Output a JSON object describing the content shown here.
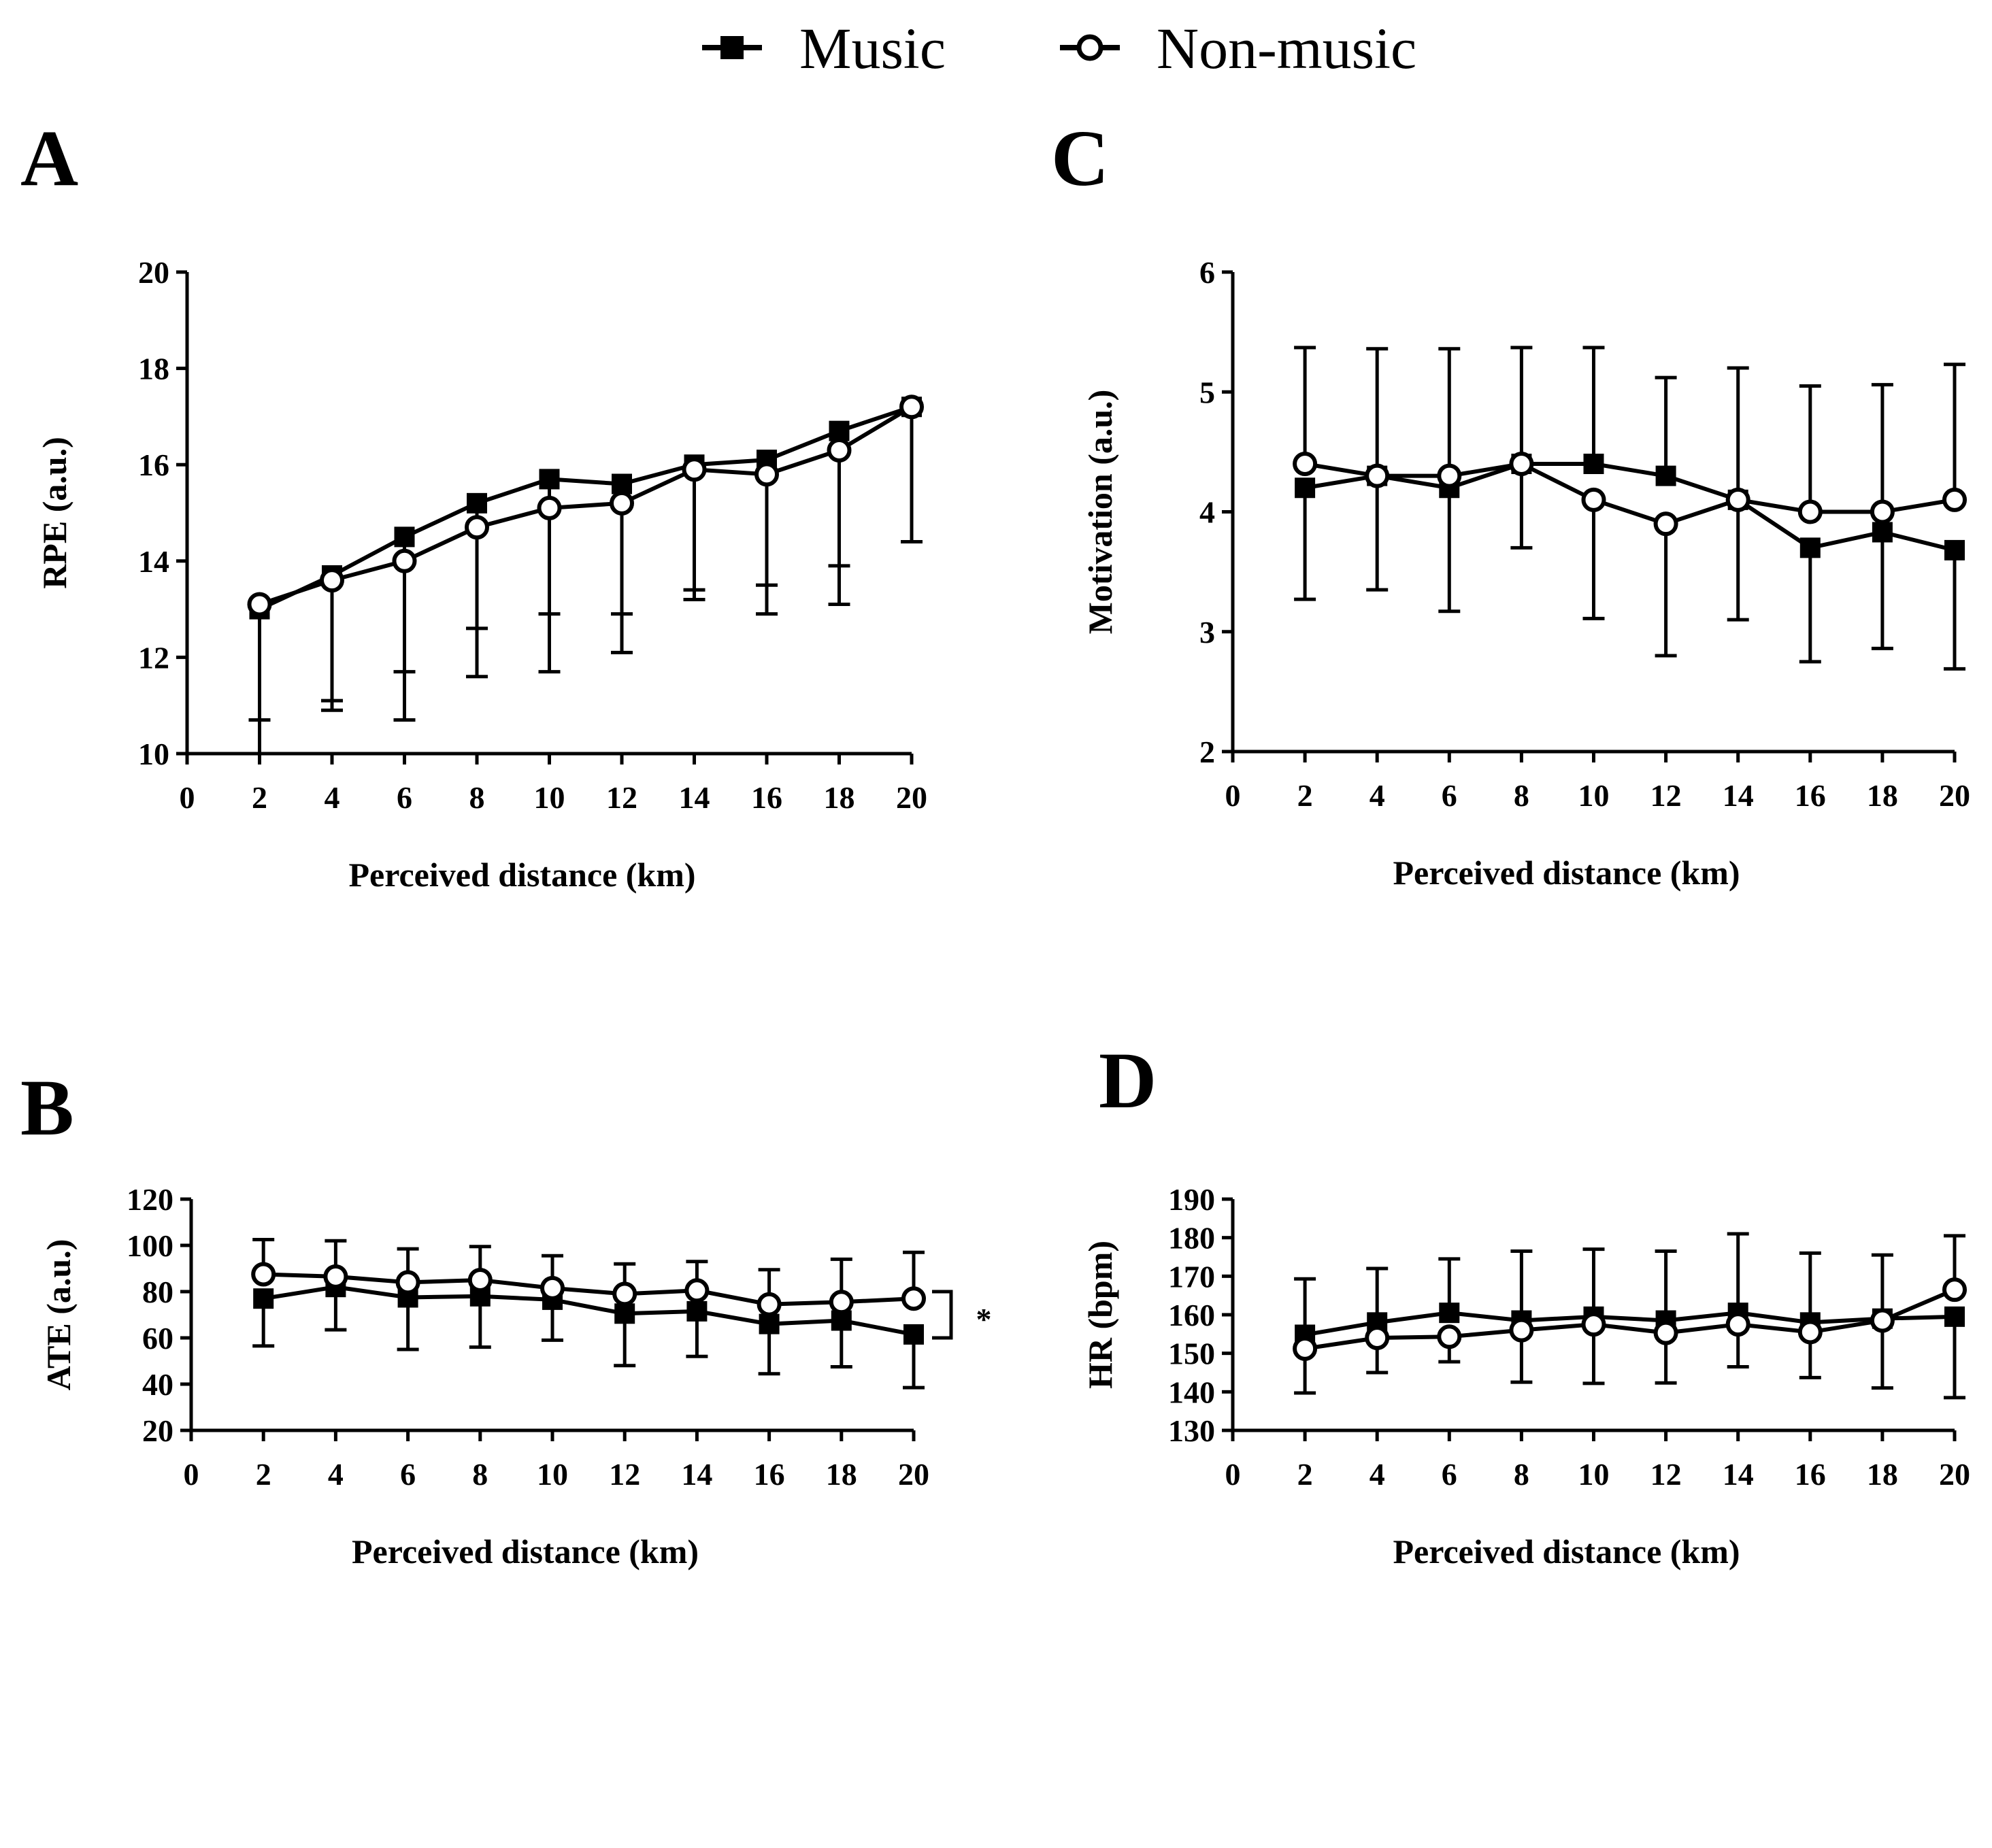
{
  "legend": [
    {
      "name": "Music",
      "marker": "filled-square"
    },
    {
      "name": "Non-music",
      "marker": "open-circle"
    }
  ],
  "colors": {
    "ink": "#000000",
    "background": "#ffffff"
  },
  "chart_data": [
    {
      "panel": "A",
      "type": "line",
      "xlabel": "Perceived distance (km)",
      "ylabel": "RPE (a.u.)",
      "xlim": [
        0,
        20
      ],
      "ylim": [
        10,
        20
      ],
      "xticks": [
        0,
        2,
        4,
        6,
        8,
        10,
        12,
        14,
        16,
        18,
        20
      ],
      "yticks": [
        10,
        12,
        14,
        16,
        18,
        20
      ],
      "x": [
        2,
        4,
        6,
        8,
        10,
        12,
        14,
        16,
        18,
        20
      ],
      "error_bar_direction": "down",
      "series": [
        {
          "name": "Music",
          "marker": "square",
          "values": [
            13.0,
            13.7,
            14.5,
            15.2,
            15.7,
            15.6,
            16.0,
            16.1,
            16.7,
            17.2
          ],
          "errors": [
            3.0,
            2.6,
            2.8,
            2.6,
            2.8,
            2.7,
            2.6,
            2.6,
            2.8,
            2.8
          ]
        },
        {
          "name": "Non-music",
          "marker": "circle",
          "values": [
            13.1,
            13.6,
            14.0,
            14.7,
            15.1,
            15.2,
            15.9,
            15.8,
            16.3,
            17.2
          ],
          "errors": [
            2.4,
            2.7,
            3.3,
            3.1,
            3.4,
            3.1,
            2.7,
            2.9,
            3.2,
            2.8
          ]
        }
      ],
      "annotations": []
    },
    {
      "panel": "B",
      "type": "line",
      "xlabel": "Perceived distance (km)",
      "ylabel": "ATE (a.u.)",
      "xlim": [
        0,
        20
      ],
      "ylim": [
        20,
        120
      ],
      "xticks": [
        0,
        2,
        4,
        6,
        8,
        10,
        12,
        14,
        16,
        18,
        20
      ],
      "yticks": [
        20,
        40,
        60,
        80,
        100,
        120
      ],
      "x": [
        2,
        4,
        6,
        8,
        10,
        12,
        14,
        16,
        18,
        20
      ],
      "error_bar_direction": "split",
      "series": [
        {
          "name": "Music",
          "marker": "square",
          "values": [
            77,
            82,
            77.5,
            78,
            76.5,
            70.5,
            71.5,
            66,
            67.5,
            61.5
          ],
          "errors": [
            20.5,
            18.5,
            22.5,
            22,
            17.5,
            22.5,
            19.5,
            21.5,
            20,
            23
          ]
        },
        {
          "name": "Non-music",
          "marker": "circle",
          "values": [
            87.5,
            86.5,
            84,
            85,
            81.5,
            79,
            80.5,
            74.5,
            75.5,
            77
          ],
          "errors": [
            15,
            15.5,
            14.5,
            14.5,
            14,
            13,
            12.5,
            15,
            18.5,
            20
          ]
        }
      ],
      "annotations": [
        {
          "text": "*",
          "bracket_from": 80,
          "bracket_to": 60
        }
      ]
    },
    {
      "panel": "C",
      "type": "line",
      "xlabel": "Perceived distance (km)",
      "ylabel": "Motivation (a.u.)",
      "xlim": [
        0,
        20
      ],
      "ylim": [
        2,
        6
      ],
      "xticks": [
        0,
        2,
        4,
        6,
        8,
        10,
        12,
        14,
        16,
        18,
        20
      ],
      "yticks": [
        2,
        3,
        4,
        5,
        6
      ],
      "x": [
        2,
        4,
        6,
        8,
        10,
        12,
        14,
        16,
        18,
        20
      ],
      "error_bar_direction": "split",
      "series": [
        {
          "name": "Music",
          "marker": "square",
          "values": [
            4.2,
            4.3,
            4.2,
            4.4,
            4.4,
            4.3,
            4.1,
            3.7,
            3.83,
            3.68
          ],
          "errors": [
            0.93,
            0.95,
            1.03,
            0.7,
            0.97,
            0.82,
            1.0,
            0.95,
            0.97,
            0.99
          ]
        },
        {
          "name": "Non-music",
          "marker": "circle",
          "values": [
            4.4,
            4.3,
            4.3,
            4.4,
            4.1,
            3.9,
            4.1,
            4.0,
            4.0,
            4.1
          ],
          "errors": [
            0.97,
            1.06,
            1.06,
            0.97,
            0.99,
            1.1,
            1.1,
            1.05,
            1.06,
            1.13
          ]
        }
      ],
      "annotations": []
    },
    {
      "panel": "D",
      "type": "line",
      "xlabel": "Perceived distance (km)",
      "ylabel": "HR (bpm)",
      "xlim": [
        0,
        20
      ],
      "ylim": [
        130,
        190
      ],
      "xticks": [
        0,
        2,
        4,
        6,
        8,
        10,
        12,
        14,
        16,
        18,
        20
      ],
      "yticks": [
        130,
        140,
        150,
        160,
        170,
        180,
        190
      ],
      "x": [
        2,
        4,
        6,
        8,
        10,
        12,
        14,
        16,
        18,
        20
      ],
      "error_bar_direction": "split",
      "series": [
        {
          "name": "Music",
          "marker": "square",
          "values": [
            154.8,
            158,
            160.5,
            158.5,
            159.5,
            158.5,
            160.5,
            158,
            159,
            159.5
          ],
          "errors": [
            14.5,
            14,
            14,
            18,
            17.5,
            18,
            20.5,
            18,
            16.5,
            21
          ]
        },
        {
          "name": "Non-music",
          "marker": "circle",
          "values": [
            151.2,
            154,
            154.3,
            156,
            157.5,
            155.3,
            157.5,
            155.5,
            158.5,
            166.5
          ],
          "errors": [
            11.5,
            9,
            6.5,
            13.5,
            15.3,
            13,
            11,
            11.8,
            17.5,
            14
          ]
        }
      ],
      "annotations": []
    }
  ]
}
